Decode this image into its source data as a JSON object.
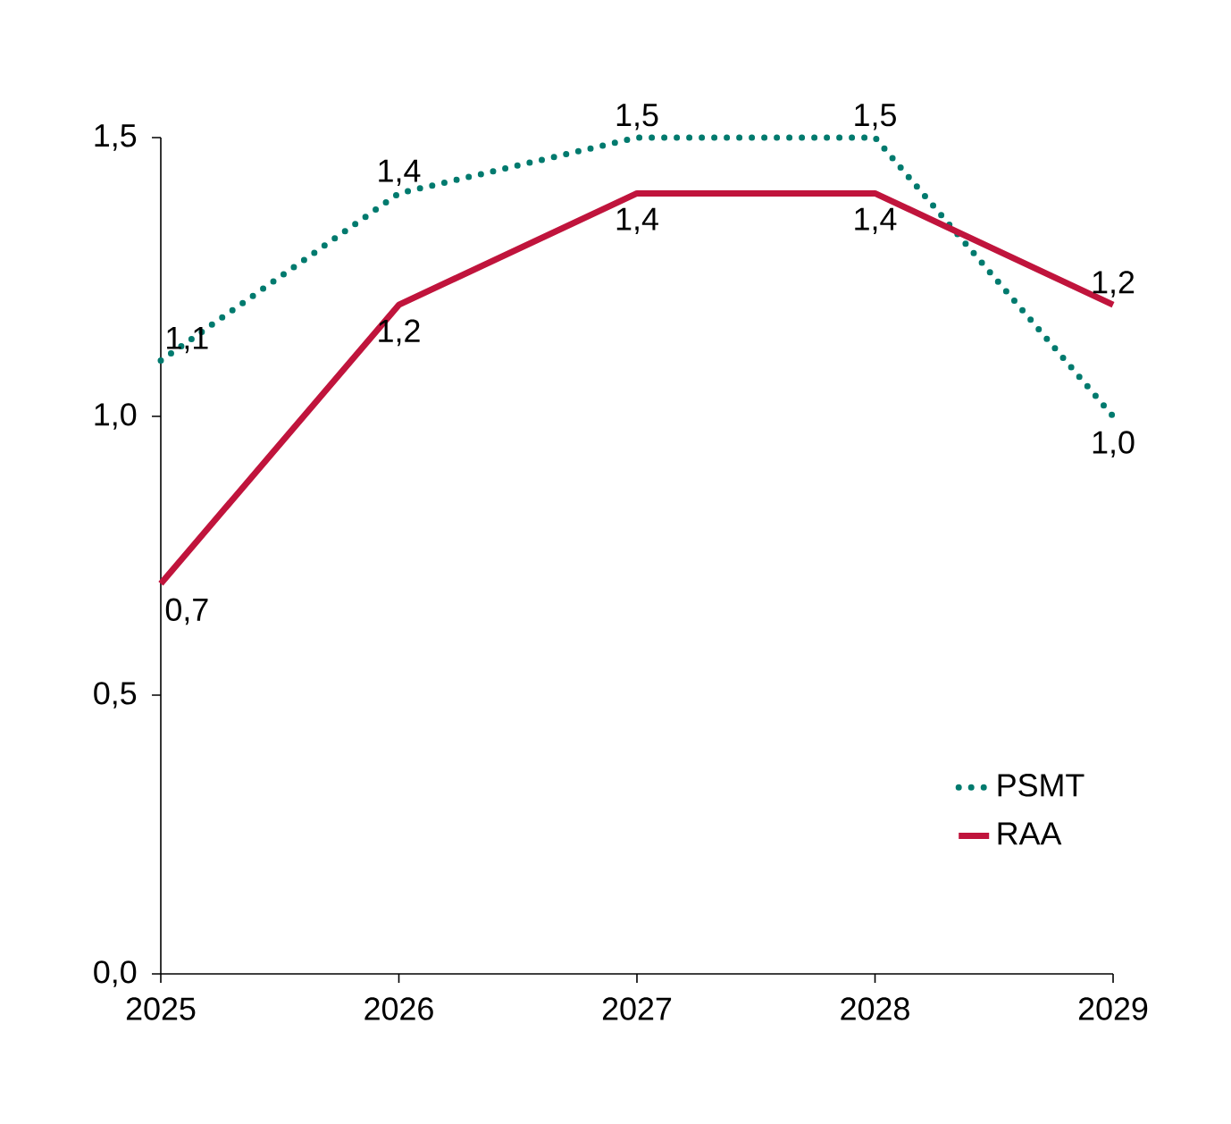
{
  "chart_data": {
    "type": "line",
    "x": [
      2025,
      2026,
      2027,
      2028,
      2029
    ],
    "series": [
      {
        "name": "PSMT",
        "color": "#007a6e",
        "line_style": "dotted",
        "values": [
          1.1,
          1.4,
          1.5,
          1.5,
          1.0
        ],
        "value_labels": [
          "1,1",
          "1,4",
          "1,5",
          "1,5",
          "1,0"
        ]
      },
      {
        "name": "RAA",
        "color": "#c0143c",
        "line_style": "solid",
        "values": [
          0.7,
          1.2,
          1.4,
          1.4,
          1.2
        ],
        "value_labels": [
          "0,7",
          "1,2",
          "1,4",
          "1,4",
          "1,2"
        ]
      }
    ],
    "xlim": [
      2025,
      2029
    ],
    "xticks": [
      2025,
      2026,
      2027,
      2028,
      2029
    ],
    "ylim": [
      0,
      1.5
    ],
    "yticks": [
      {
        "value": 0,
        "label": "0,0"
      },
      {
        "value": 0.5,
        "label": "0,5"
      },
      {
        "value": 1.0,
        "label": "1,0"
      },
      {
        "value": 1.5,
        "label": "1,5"
      }
    ],
    "grid": false,
    "legend": "bottom right",
    "marker": "none"
  }
}
